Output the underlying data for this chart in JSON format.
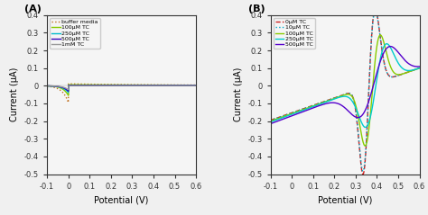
{
  "panel_A": {
    "title": "(A)",
    "xlabel": "Potential (V)",
    "ylabel": "Current (μA)",
    "xlim": [
      -0.1,
      0.6
    ],
    "ylim": [
      -0.5,
      0.4
    ],
    "yticks": [
      -0.5,
      -0.4,
      -0.3,
      -0.2,
      -0.1,
      0.0,
      0.1,
      0.2,
      0.3,
      0.4
    ],
    "xticks": [
      -0.1,
      0.0,
      0.1,
      0.2,
      0.3,
      0.4,
      0.5,
      0.6
    ],
    "legend_labels": [
      "buffer media",
      "100μM TC",
      "250μM TC",
      "500μM TC",
      "1mM TC"
    ],
    "legend_colors": [
      "#c07020",
      "#88cc00",
      "#00bbcc",
      "#3300bb",
      "#999999"
    ],
    "legend_styles": [
      "dotted",
      "solid",
      "solid",
      "solid",
      "solid"
    ],
    "bg_color": "#f0f0f0"
  },
  "panel_B": {
    "title": "(B)",
    "xlabel": "Potential (V)",
    "ylabel": "Current (μA)",
    "xlim": [
      -0.1,
      0.6
    ],
    "ylim": [
      -0.5,
      0.4
    ],
    "yticks": [
      -0.5,
      -0.4,
      -0.3,
      -0.2,
      -0.1,
      0.0,
      0.1,
      0.2,
      0.3,
      0.4
    ],
    "xticks": [
      -0.1,
      0.0,
      0.1,
      0.2,
      0.3,
      0.4,
      0.5,
      0.6
    ],
    "legend_labels": [
      "0μM TC",
      "10μM TC",
      "100μM TC",
      "250μM TC",
      "500μM TC"
    ],
    "legend_colors": [
      "#cc2222",
      "#00aacc",
      "#88cc00",
      "#00cccc",
      "#5500cc"
    ],
    "legend_styles": [
      "dashed",
      "dotted",
      "solid",
      "solid",
      "solid"
    ],
    "bg_color": "#f0f0f0"
  },
  "fig_bg": "#f0f0f0"
}
